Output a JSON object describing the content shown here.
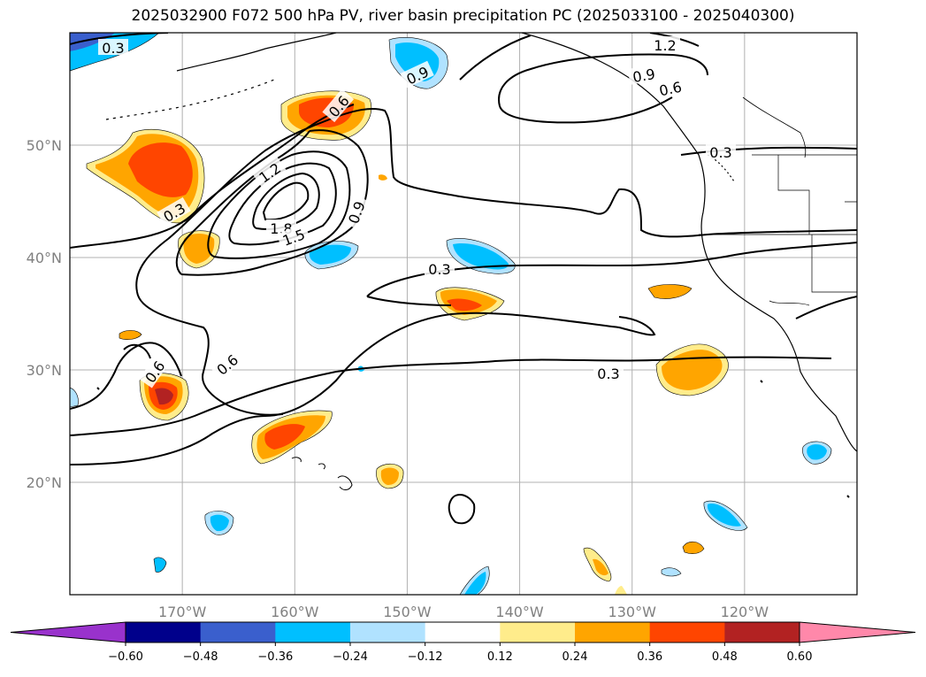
{
  "title": "2025032900 F072 500 hPa PV, river basin precipitation PC (2025033100 - 2025040300)",
  "map": {
    "lon_range": [
      -180,
      -110
    ],
    "lat_range": [
      10,
      60
    ],
    "lon_ticks": [
      {
        "value": -170,
        "label": "170°W"
      },
      {
        "value": -160,
        "label": "160°W"
      },
      {
        "value": -150,
        "label": "150°W"
      },
      {
        "value": -140,
        "label": "140°W"
      },
      {
        "value": -130,
        "label": "130°W"
      },
      {
        "value": -120,
        "label": "120°W"
      }
    ],
    "lat_ticks": [
      {
        "value": 20,
        "label": "20°N"
      },
      {
        "value": 30,
        "label": "30°N"
      },
      {
        "value": 40,
        "label": "40°N"
      },
      {
        "value": 50,
        "label": "50°N"
      }
    ],
    "grid": true,
    "contour_labels": [
      "0.3",
      "0.6",
      "0.9",
      "1.2",
      "1.5",
      "1.8"
    ]
  },
  "colorbar": {
    "ticks": [
      "−0.60",
      "−0.48",
      "−0.36",
      "−0.24",
      "−0.12",
      "0.12",
      "0.24",
      "0.36",
      "0.48",
      "0.60"
    ],
    "colors": [
      "#9932cc",
      "#00008b",
      "#3a5fcd",
      "#00bfff",
      "#b0e2ff",
      "#ffffff",
      "#ffec8b",
      "#ffa500",
      "#ff4500",
      "#b22222",
      "#ff88aa"
    ]
  }
}
